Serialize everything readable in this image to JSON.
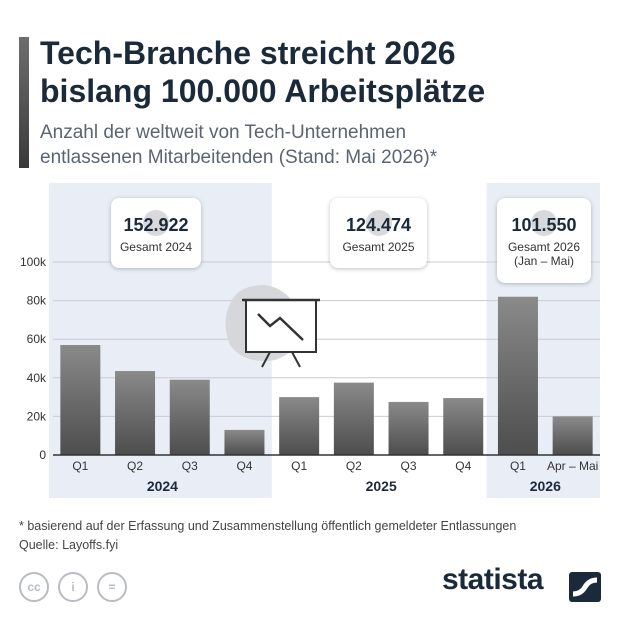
{
  "title_line1": "Tech-Branche streicht 2026",
  "title_line2": "bislang 100.000 Arbeitsplätze",
  "subtitle_line1": "Anzahl der weltweit von Tech-Unternehmen",
  "subtitle_line2": "entlassenen Mitarbeitenden (Stand: Mai 2026)*",
  "colors": {
    "bar_top": "#8a8a8a",
    "bar_bottom": "#4d4d4d",
    "highlight_band": "#e9edf6",
    "text_dark": "#1b2a3b"
  },
  "chart_data": {
    "type": "bar",
    "categories": [
      "Q1",
      "Q2",
      "Q3",
      "Q4",
      "Q1",
      "Q2",
      "Q3",
      "Q4",
      "Q1",
      "Apr – Mai"
    ],
    "groups": [
      "2024",
      "2025",
      "2026"
    ],
    "group_of_category": [
      0,
      0,
      0,
      0,
      1,
      1,
      1,
      1,
      2,
      2
    ],
    "values": [
      57000,
      43500,
      39000,
      13000,
      30000,
      37500,
      27500,
      29500,
      82000,
      20000
    ],
    "ylim": [
      0,
      100000
    ],
    "yticks": [
      0,
      20000,
      40000,
      60000,
      80000,
      100000
    ],
    "ytick_labels": [
      "0",
      "20k",
      "40k",
      "60k",
      "80k",
      "100k"
    ],
    "highlighted_groups": [
      "2024",
      "2026"
    ],
    "grid": true,
    "totals": [
      {
        "group": "2024",
        "value": "152.922",
        "label": "Gesamt 2024"
      },
      {
        "group": "2025",
        "value": "124.474",
        "label": "Gesamt 2025"
      },
      {
        "group": "2026",
        "value": "101.550",
        "label": "Gesamt 2026",
        "label2": "(Jan – Mai)"
      }
    ]
  },
  "icon": "declining-chart-presentation-icon",
  "footnote_line1": "* basierend auf der Erfassung und Zusammenstellung öffentlich gemeldeter Entlassungen",
  "footnote_line2": "Quelle: Layoffs.fyi",
  "license_icons": [
    "cc-icon",
    "attribution-icon",
    "no-derivatives-icon"
  ],
  "license_glyphs": [
    "cc",
    "i",
    "="
  ],
  "brand": "statista"
}
